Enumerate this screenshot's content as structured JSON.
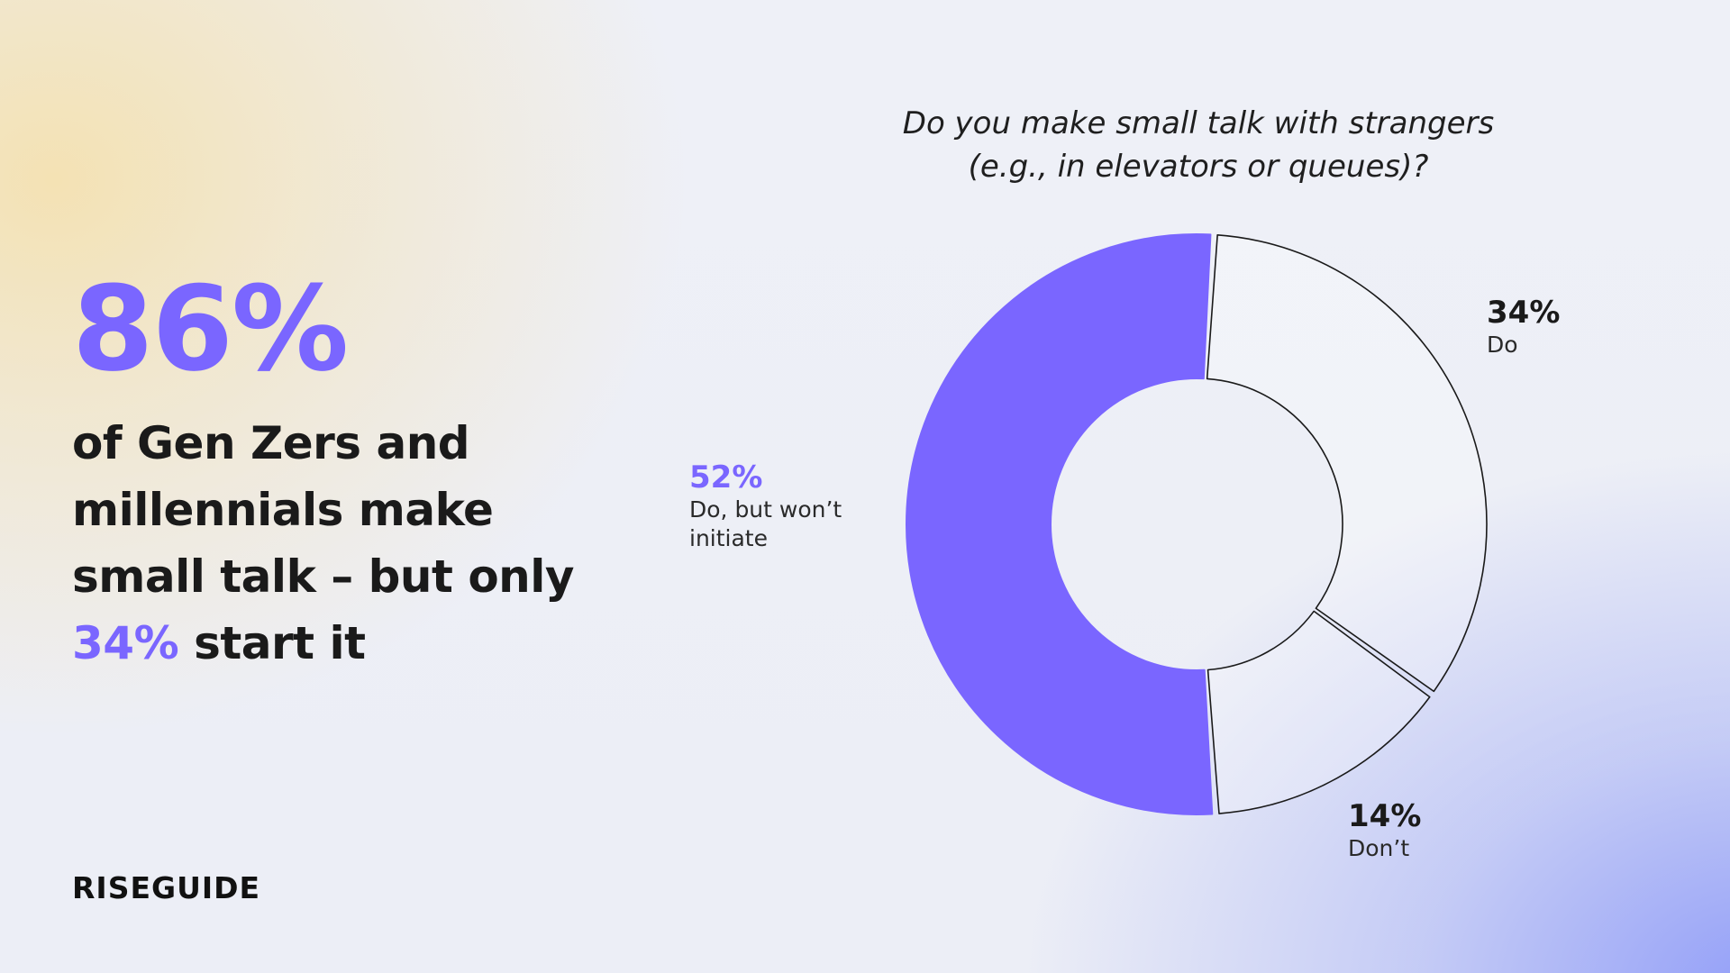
{
  "headline": {
    "stat": "86%",
    "text_before": "of Gen Zers and millennials make small talk – but only",
    "highlight": "34%",
    "text_after": "start it"
  },
  "chart_data": {
    "type": "pie",
    "title_line1": "Do you make small talk with strangers",
    "title_line2": "(e.g., in elevators or queues)?",
    "slices": [
      {
        "label": "Do",
        "value": 34,
        "value_label": "34%",
        "color": "#ffffff",
        "fill_opacity": 0.25
      },
      {
        "label": "Don’t",
        "value": 14,
        "value_label": "14%",
        "color": "#ffffff",
        "fill_opacity": 0.25
      },
      {
        "label": "Do, but won’t initiate",
        "value": 52,
        "value_label": "52%",
        "color": "#7a66ff",
        "fill_opacity": 1
      }
    ],
    "accent": "#7a66ff"
  },
  "brand": {
    "logo": "RISEGUIDE"
  }
}
